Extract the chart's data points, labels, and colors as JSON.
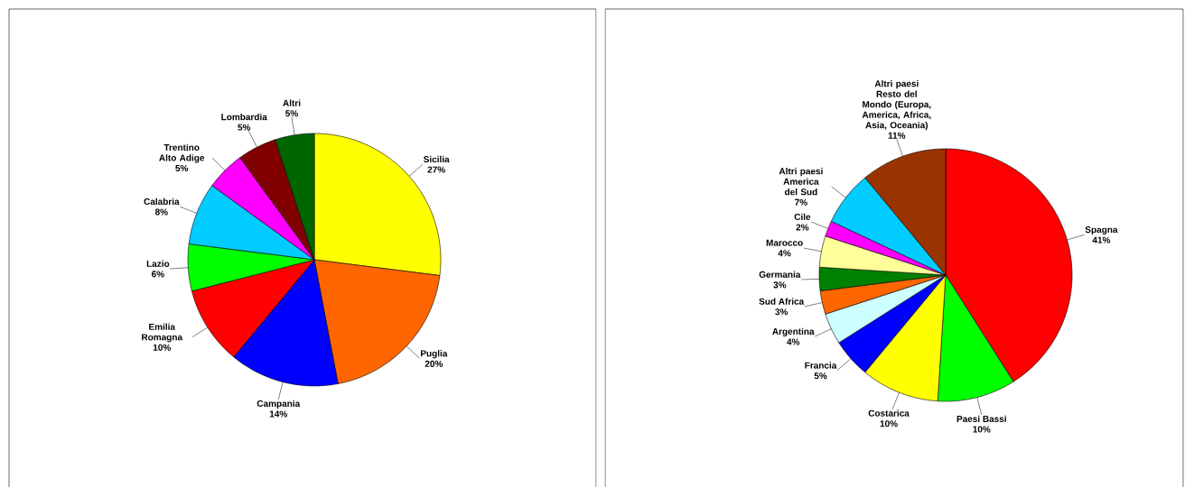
{
  "chart_data": [
    {
      "type": "pie",
      "categories": [
        "Sicilia",
        "Puglia",
        "Campania",
        "Emilia Romagna",
        "Lazio",
        "Calabria",
        "Trentino Alto Adige",
        "Lombardia",
        "Altri"
      ],
      "values": [
        27,
        20,
        14,
        10,
        6,
        8,
        5,
        5,
        5
      ],
      "value_labels": [
        "27%",
        "20%",
        "14%",
        "10%",
        "6%",
        "8%",
        "5%",
        "5%",
        "5%"
      ],
      "colors": [
        "#ffff00",
        "#ff6600",
        "#0000ff",
        "#ff0000",
        "#00ff00",
        "#00ccff",
        "#ff00ff",
        "#800000",
        "#006600"
      ]
    },
    {
      "type": "pie",
      "categories": [
        "Spagna",
        "Paesi Bassi",
        "Costarica",
        "Francia",
        "Argentina",
        "Sud Africa",
        "Germania",
        "Marocco",
        "Cile",
        "Altri paesi America del Sud",
        "Altri paesi Resto del Mondo (Europa, America, Africa, Asia, Oceania)"
      ],
      "values": [
        41,
        10,
        10,
        5,
        4,
        3,
        3,
        4,
        2,
        7,
        11
      ],
      "value_labels": [
        "41%",
        "10%",
        "10%",
        "5%",
        "4%",
        "3%",
        "3%",
        "4%",
        "2%",
        "7%",
        "11%"
      ],
      "colors": [
        "#ff0000",
        "#00ff00",
        "#ffff00",
        "#0000ff",
        "#ccffff",
        "#ff6600",
        "#008000",
        "#ffff99",
        "#ff00ff",
        "#00ccff",
        "#993300"
      ]
    }
  ]
}
